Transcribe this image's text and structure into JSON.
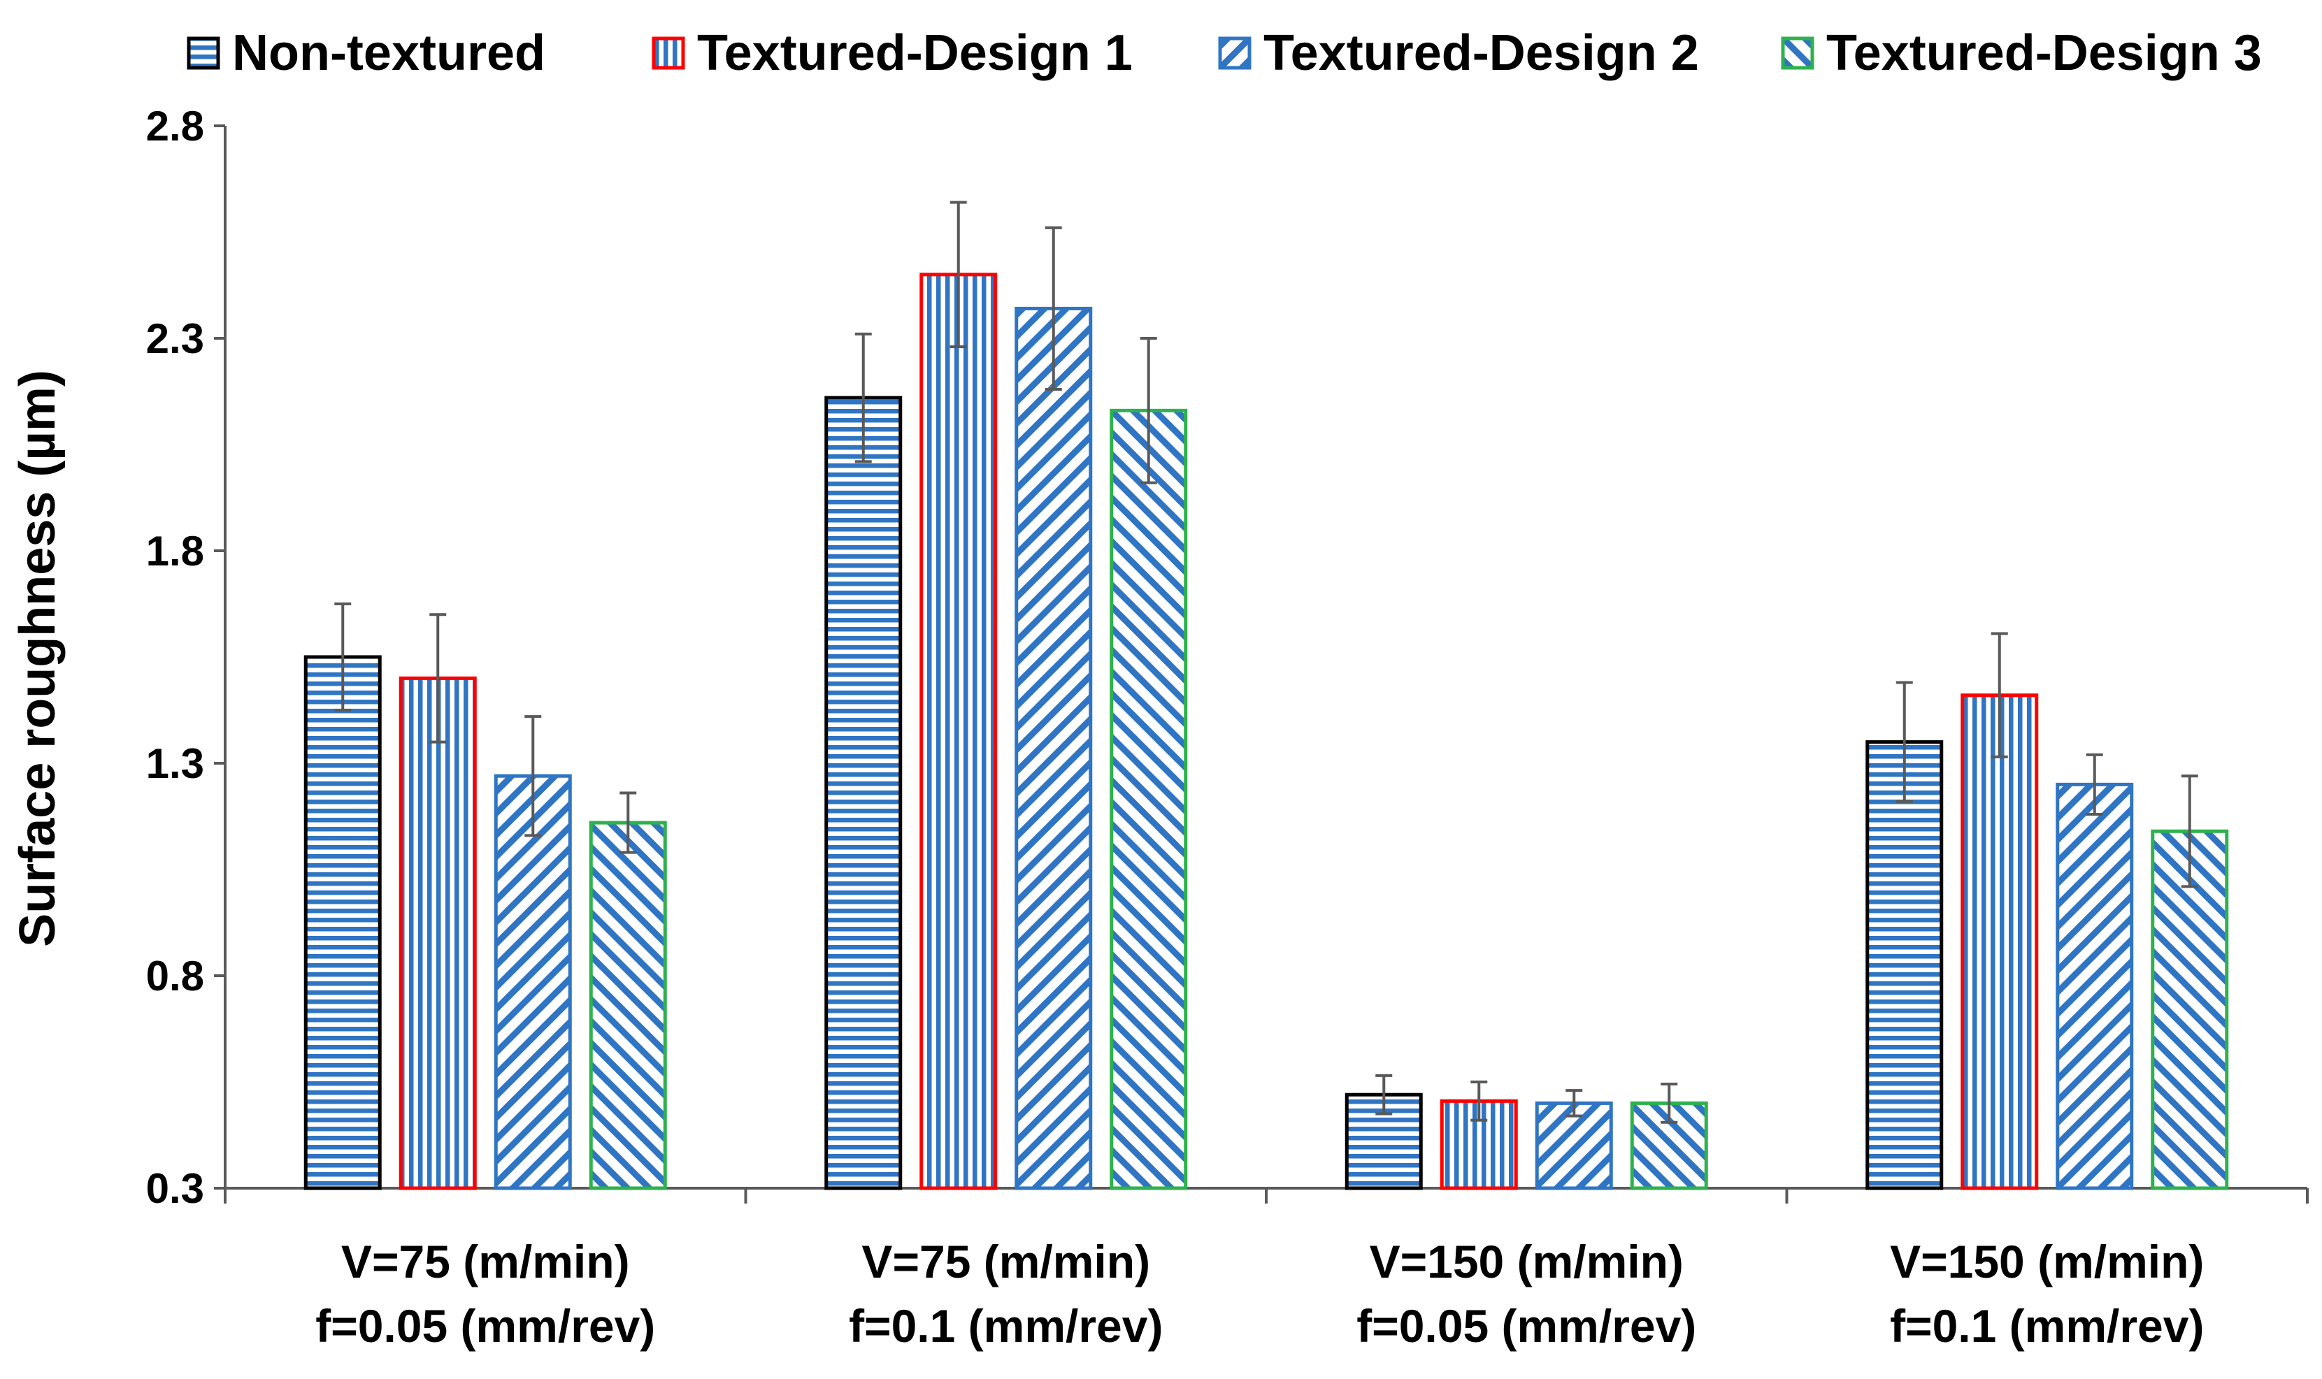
{
  "chart_data": {
    "type": "bar",
    "title": "",
    "xlabel": "",
    "ylabel": "Surface roughness  (µm)",
    "ylim": [
      0.3,
      2.8
    ],
    "yticks": [
      "0.3",
      "0.8",
      "1.3",
      "1.8",
      "2.3",
      "2.8"
    ],
    "legend_position": "top",
    "grid": false,
    "categories": [
      [
        "V=75 (m/min)",
        "f=0.05 (mm/rev)"
      ],
      [
        "V=75 (m/min)",
        "f=0.1 (mm/rev)"
      ],
      [
        "V=150 (m/min)",
        "f=0.05 (mm/rev)"
      ],
      [
        "V=150 (m/min)",
        "f=0.1 (mm/rev)"
      ]
    ],
    "series": [
      {
        "name": "Non-textured",
        "values": [
          1.55,
          2.16,
          0.52,
          1.35
        ],
        "errors": [
          0.125,
          0.15,
          0.045,
          0.14
        ],
        "hatch": "horizontal",
        "fill_color": "#2f75c4",
        "border_color": "#000000"
      },
      {
        "name": "Textured-Design 1",
        "values": [
          1.5,
          2.45,
          0.505,
          1.46
        ],
        "errors": [
          0.15,
          0.17,
          0.045,
          0.145
        ],
        "hatch": "vertical",
        "fill_color": "#2f75c4",
        "border_color": "#ff0000"
      },
      {
        "name": "Textured-Design 2",
        "values": [
          1.27,
          2.37,
          0.5,
          1.25
        ],
        "errors": [
          0.14,
          0.19,
          0.03,
          0.07
        ],
        "hatch": "diagonal-down",
        "fill_color": "#2f75c4",
        "border_color": "#2f75c4"
      },
      {
        "name": "Textured-Design 3",
        "values": [
          1.16,
          2.13,
          0.5,
          1.14
        ],
        "errors": [
          0.07,
          0.17,
          0.045,
          0.13
        ],
        "hatch": "diagonal-up",
        "fill_color": "#2f75c4",
        "border_color": "#2db24d"
      }
    ],
    "error_bar_color": "#595959"
  }
}
